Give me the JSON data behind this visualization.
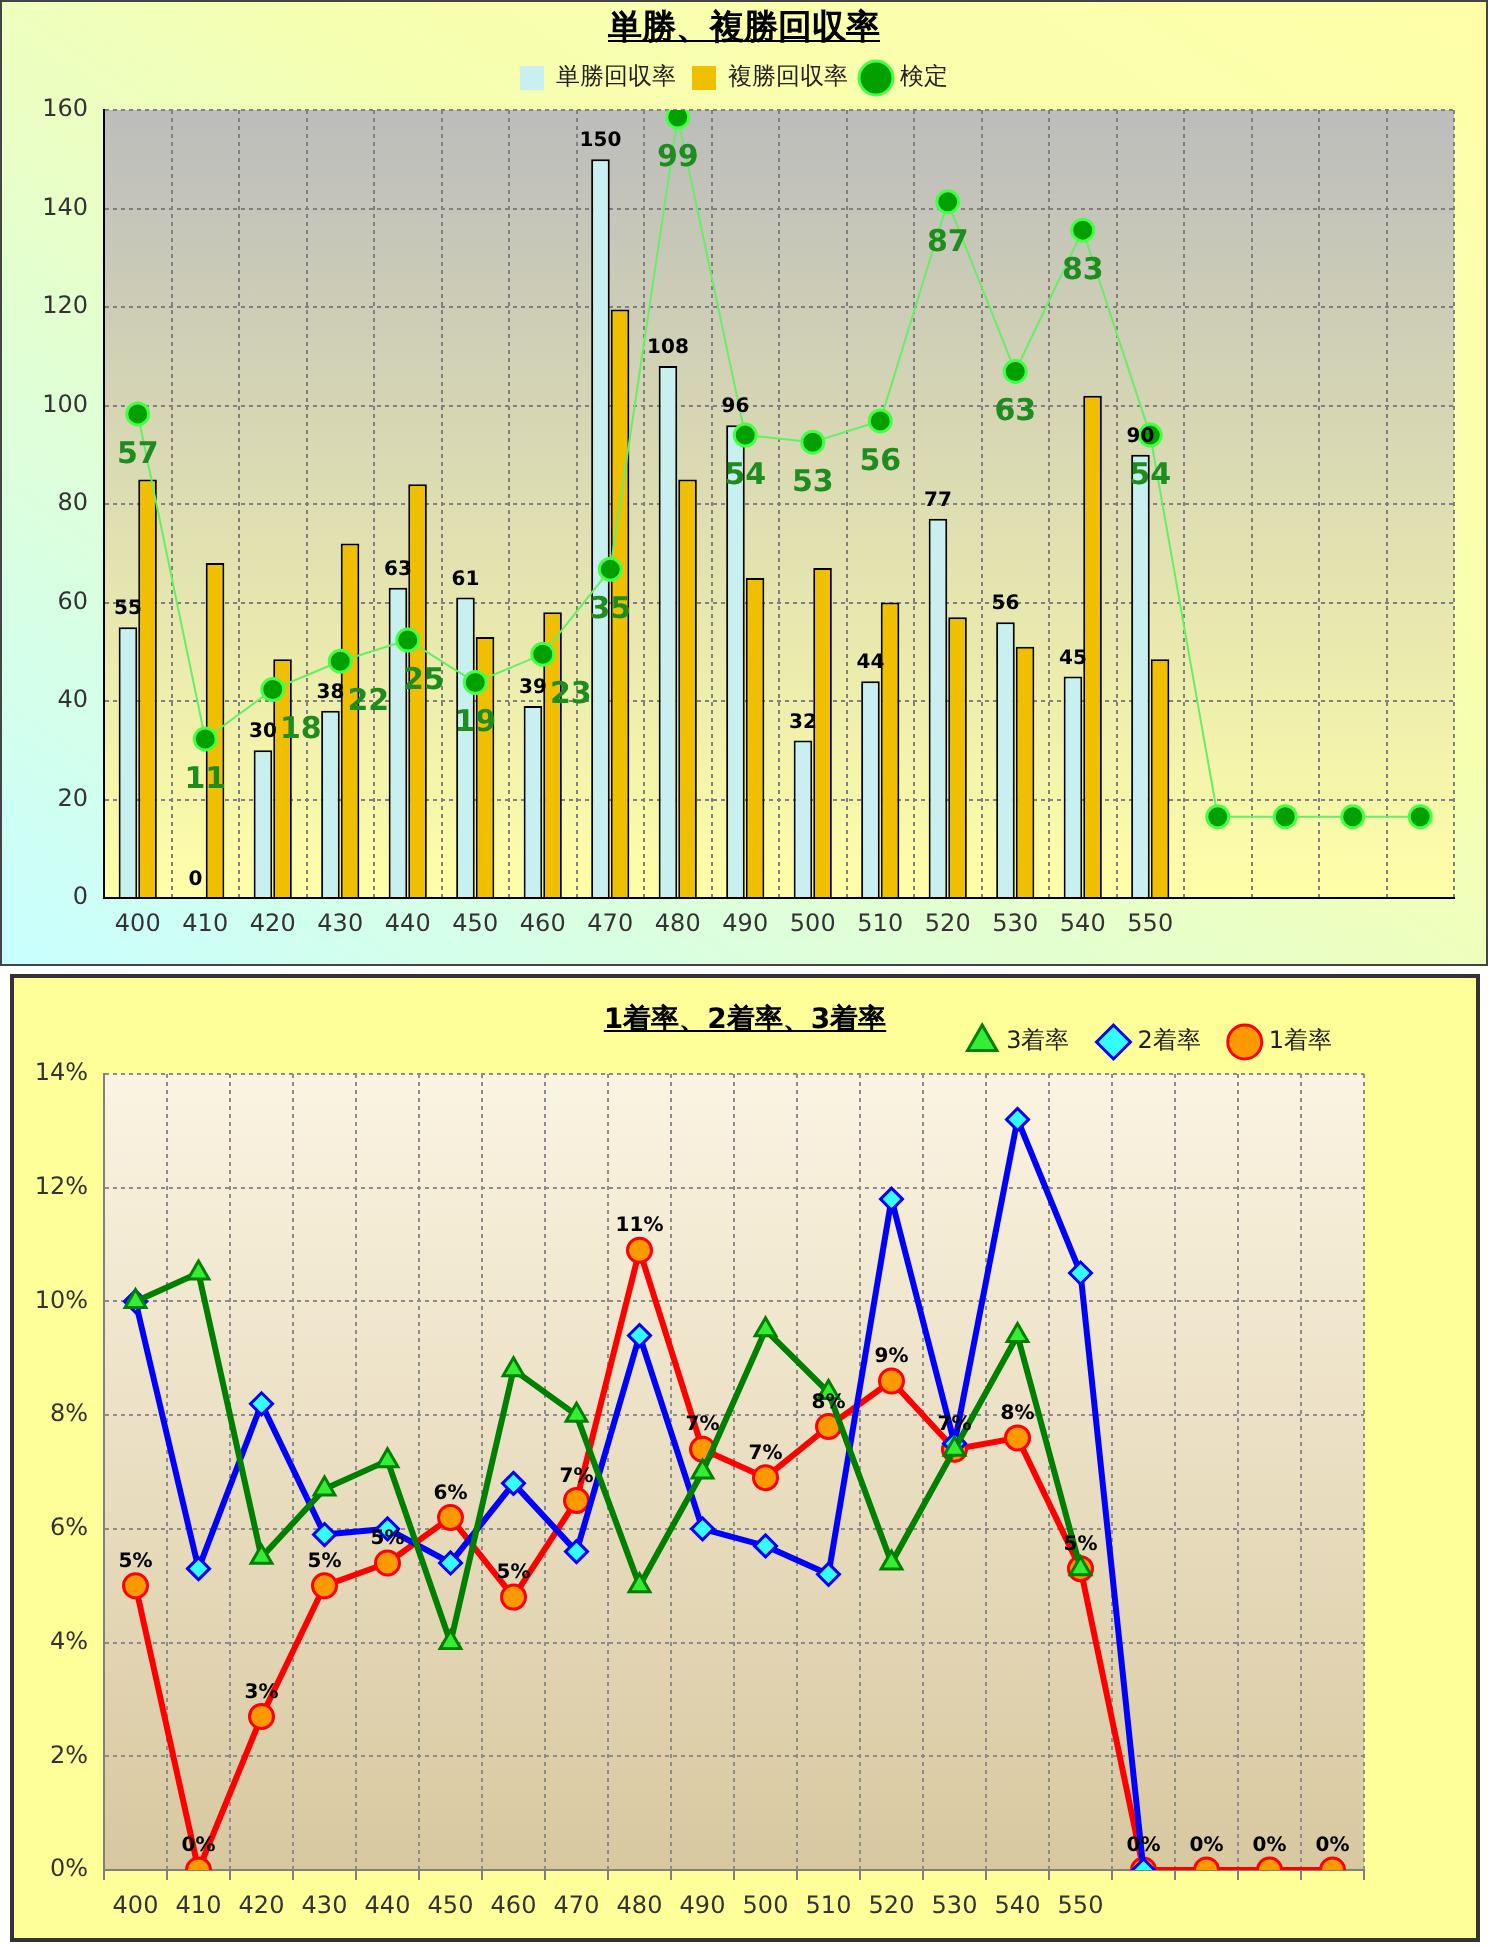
{
  "chart_data": [
    {
      "type": "bar",
      "title": "単勝、複勝回収率",
      "categories": [
        "400",
        "410",
        "420",
        "430",
        "440",
        "450",
        "460",
        "470",
        "480",
        "490",
        "500",
        "510",
        "520",
        "530",
        "540",
        "550",
        null,
        null,
        null,
        null
      ],
      "series": [
        {
          "name": "単勝回収率",
          "type": "bar",
          "color": "#c8f0f0",
          "values": [
            55,
            0,
            30,
            38,
            63,
            61,
            39,
            150,
            108,
            96,
            32,
            44,
            77,
            56,
            45,
            90,
            null,
            null,
            null,
            null
          ],
          "value_labels": [
            "55",
            "0",
            "30",
            "38",
            "63",
            "61",
            "39",
            "150",
            "108",
            "96",
            "32",
            "44",
            "77",
            "56",
            "45",
            "90",
            null,
            null,
            null,
            null
          ]
        },
        {
          "name": "複勝回収率",
          "type": "bar",
          "color": "#f0c000",
          "values": [
            85,
            68,
            48.5,
            72,
            84,
            53,
            58,
            119.5,
            85,
            65,
            67,
            60,
            57,
            51,
            102,
            48.5,
            null,
            null,
            null,
            null
          ]
        },
        {
          "name": "検定",
          "type": "line",
          "axis": "y2",
          "color": "#66ee66",
          "marker": "circle",
          "values": [
            57,
            11,
            18,
            22,
            25,
            19,
            23,
            35,
            99,
            54,
            53,
            56,
            87,
            63,
            83,
            54,
            0,
            0,
            0,
            0
          ],
          "value_labels": [
            "57",
            "11",
            "18",
            "22",
            "25",
            "19",
            "23",
            "35",
            "99",
            "54",
            "53",
            "56",
            "87",
            "63",
            "83",
            "54",
            null,
            null,
            null,
            null
          ]
        }
      ],
      "ylim": [
        0,
        160
      ],
      "yticks": [
        0,
        20,
        40,
        60,
        80,
        100,
        120,
        140,
        160
      ],
      "y2lim": [
        -11.5,
        100
      ],
      "grid": true,
      "legend": "top"
    },
    {
      "type": "line",
      "title": "1着率、2着率、3着率",
      "categories": [
        "400",
        "410",
        "420",
        "430",
        "440",
        "450",
        "460",
        "470",
        "480",
        "490",
        "500",
        "510",
        "520",
        "530",
        "540",
        "550",
        null,
        null,
        null,
        null
      ],
      "series": [
        {
          "name": "3着率",
          "color": "#008000",
          "marker": "triangle",
          "values": [
            10.0,
            10.5,
            5.5,
            6.7,
            7.2,
            4.0,
            8.8,
            8.0,
            5.0,
            7.0,
            9.5,
            8.4,
            5.4,
            7.4,
            9.4,
            5.3,
            null,
            null,
            null,
            null
          ]
        },
        {
          "name": "2着率",
          "color": "#0000ff",
          "marker": "diamond",
          "values": [
            10.0,
            5.3,
            8.2,
            5.9,
            6.0,
            5.4,
            6.8,
            5.6,
            9.4,
            6.0,
            5.7,
            5.2,
            11.8,
            7.5,
            13.2,
            10.5,
            0,
            null,
            null,
            null
          ]
        },
        {
          "name": "1着率",
          "color": "#ff0000",
          "marker": "circle",
          "values": [
            5.0,
            0,
            2.7,
            5.0,
            5.4,
            6.2,
            4.8,
            6.5,
            10.9,
            7.4,
            6.9,
            7.8,
            8.6,
            7.4,
            7.6,
            5.3,
            0,
            0,
            0,
            0
          ],
          "value_labels": [
            "5%",
            "0%",
            "3%",
            "5%",
            "5%",
            "6%",
            "5%",
            "7%",
            "11%",
            "7%",
            "7%",
            "8%",
            "9%",
            "7%",
            "8%",
            "5%",
            "0%",
            "0%",
            "0%",
            "0%"
          ]
        }
      ],
      "ylim": [
        0,
        14
      ],
      "yticks": [
        {
          "value": 0,
          "label": "0%"
        },
        {
          "value": 2,
          "label": "2%"
        },
        {
          "value": 4,
          "label": "4%"
        },
        {
          "value": 6,
          "label": "6%"
        },
        {
          "value": 8,
          "label": "8%"
        },
        {
          "value": 10,
          "label": "10%"
        },
        {
          "value": 12,
          "label": "12%"
        },
        {
          "value": 14,
          "label": "14%"
        }
      ],
      "grid": true,
      "legend": "top right"
    }
  ]
}
